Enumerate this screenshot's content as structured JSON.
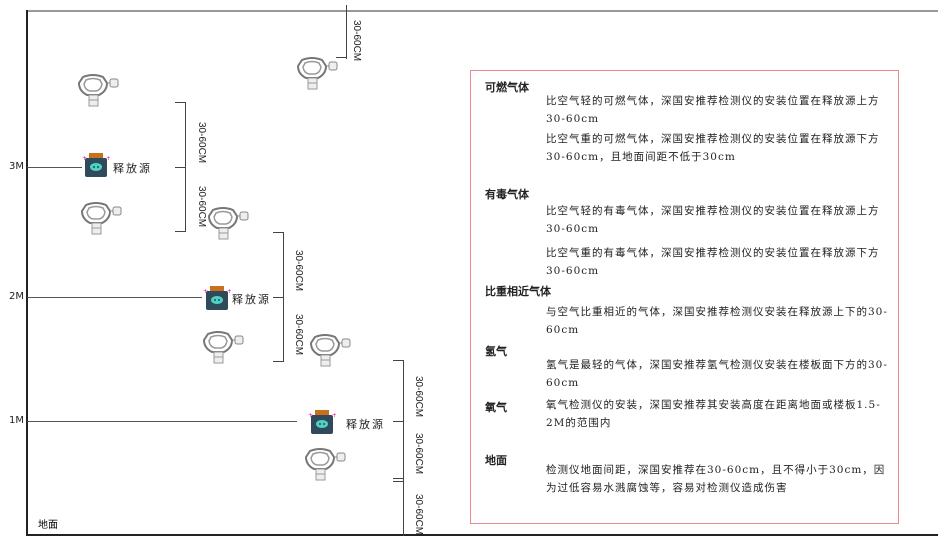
{
  "levels": {
    "m3": "3M",
    "m2": "2M",
    "m1": "1M",
    "ground": "地面"
  },
  "source_label": "释放源",
  "dimension_label": "30-60CM",
  "colors": {
    "border": "#e88a8f",
    "source_body": "#2f4a5a",
    "source_cap": "#c9701e",
    "source_face": "#4fd1c5"
  },
  "icons": {
    "detector": "gas-detector-icon",
    "source": "gas-source-icon"
  },
  "legend": {
    "combustible": {
      "title": "可燃气体",
      "light": "比空气轻的可燃气体，深国安推荐检测仪的安装位置在释放源上方30-60cm",
      "heavy": "比空气重的可燃气体，深国安推荐检测仪的安装位置在释放源下方30-60cm，且地面间距不低于30cm"
    },
    "toxic": {
      "title": "有毒气体",
      "light": "比空气轻的有毒气体，深国安推荐检测仪的安装位置在释放源上方30-60cm",
      "heavy": "比空气重的有毒气体，深国安推荐检测仪的安装位置在释放源下方30-60cm"
    },
    "similar": {
      "title": "比重相近气体",
      "text": "与空气比重相近的气体，深国安推荐检测仪安装在释放源上下的30-60cm"
    },
    "hydrogen": {
      "title": "氢气",
      "text": "氢气是最轻的气体，深国安推荐氢气检测仪安装在楼板面下方的30-60cm"
    },
    "oxygen": {
      "title": "氧气",
      "text": "氧气检测仪的安装，深国安推荐其安装高度在距离地面或楼板1.5-2M的范围内"
    },
    "ground": {
      "title": "地面",
      "text": "检测仪地面间距，深国安推荐在30-60cm，且不得小于30cm，因为过低容易水溅腐蚀等，容易对检测仪造成伤害"
    }
  }
}
